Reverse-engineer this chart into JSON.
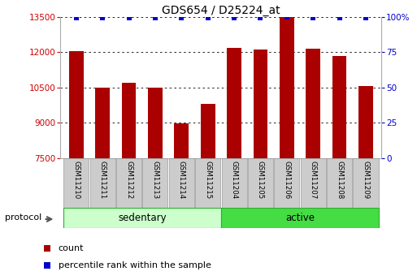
{
  "title": "GDS654 / D25224_at",
  "samples": [
    "GSM11210",
    "GSM11211",
    "GSM11212",
    "GSM11213",
    "GSM11214",
    "GSM11215",
    "GSM11204",
    "GSM11205",
    "GSM11206",
    "GSM11207",
    "GSM11208",
    "GSM11209"
  ],
  "counts": [
    12050,
    10500,
    10700,
    10500,
    8980,
    9800,
    12180,
    12100,
    13480,
    12150,
    11850,
    10550
  ],
  "percentile_ranks": [
    99,
    99,
    99,
    99,
    99,
    99,
    99,
    99,
    100,
    99,
    99,
    99
  ],
  "bar_color": "#aa0000",
  "dot_color": "#0000cc",
  "ylim_left": [
    7500,
    13500
  ],
  "ylim_right": [
    0,
    100
  ],
  "yticks_left": [
    7500,
    9000,
    10500,
    12000,
    13500
  ],
  "yticks_right": [
    0,
    25,
    50,
    75,
    100
  ],
  "groups": [
    {
      "label": "sedentary",
      "start": 0,
      "end": 6,
      "color": "#ccffcc"
    },
    {
      "label": "active",
      "start": 6,
      "end": 12,
      "color": "#44dd44"
    }
  ],
  "protocol_label": "protocol",
  "legend_count_label": "count",
  "legend_pct_label": "percentile rank within the sample",
  "grid_color": "#000000",
  "background_color": "#ffffff",
  "left_tick_color": "#cc0000",
  "right_tick_color": "#0000cc",
  "bar_width": 0.55
}
